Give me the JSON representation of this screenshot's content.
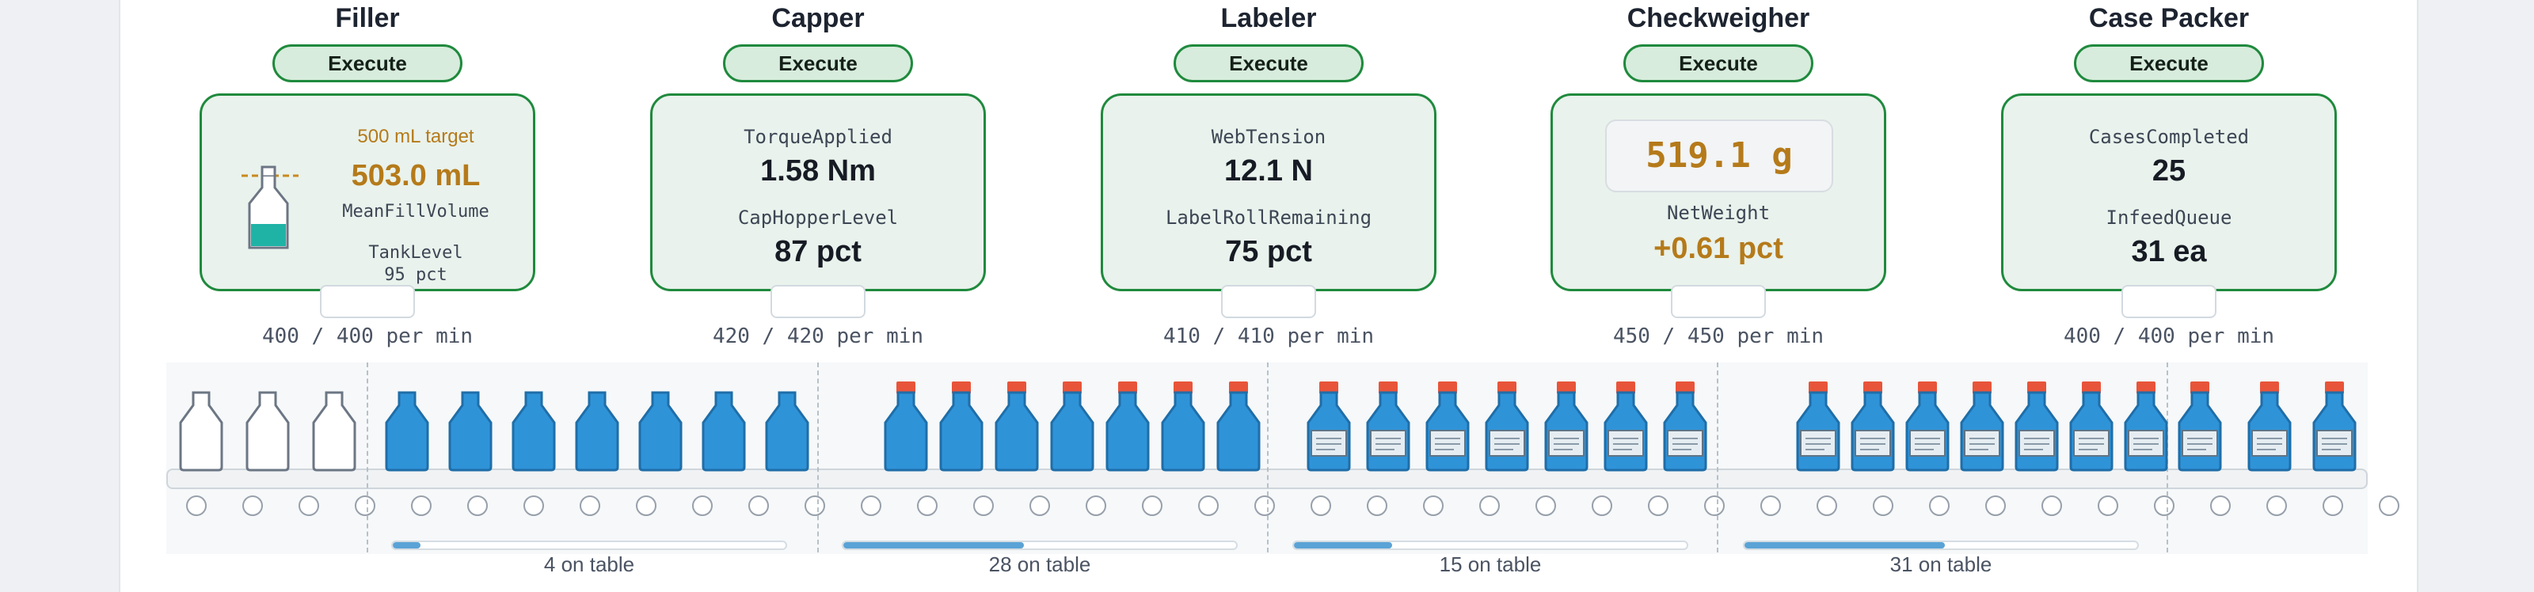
{
  "stations": [
    {
      "name": "Filler",
      "execute_label": "Execute",
      "rate": "400 / 400 per min",
      "target": "500 mL target",
      "fill_value": "503.0 mL",
      "fill_label": "MeanFillVolume",
      "tank_label": "TankLevel",
      "tank_value": "95 pct"
    },
    {
      "name": "Capper",
      "execute_label": "Execute",
      "rate": "420 / 420 per min",
      "m1_label": "TorqueApplied",
      "m1_value": "1.58 Nm",
      "m2_label": "CapHopperLevel",
      "m2_value": "87 pct"
    },
    {
      "name": "Labeler",
      "execute_label": "Execute",
      "rate": "410 / 410 per min",
      "m1_label": "WebTension",
      "m1_value": "12.1 N",
      "m2_label": "LabelRollRemaining",
      "m2_value": "75 pct"
    },
    {
      "name": "Checkweigher",
      "execute_label": "Execute",
      "rate": "450 / 450 per min",
      "display_value": "519.1 g",
      "m_label": "NetWeight",
      "m_value": "+0.61 pct"
    },
    {
      "name": "Case Packer",
      "execute_label": "Execute",
      "rate": "400 / 400 per min",
      "m1_label": "CasesCompleted",
      "m1_value": "25",
      "m2_label": "InfeedQueue",
      "m2_value": "31 ea"
    }
  ],
  "buffers": [
    {
      "label": "4 on table",
      "fill_fraction": 0.07
    },
    {
      "label": "28 on table",
      "fill_fraction": 0.46
    },
    {
      "label": "15 on table",
      "fill_fraction": 0.25
    },
    {
      "label": "31 on table",
      "fill_fraction": 0.51
    }
  ],
  "colors": {
    "accent_green": "#1f8a3d",
    "bottle_blue": "#2f93d8",
    "cap_red": "#e8543a",
    "fill_teal": "#1fb3a6",
    "warn_orange": "#b57a1a"
  }
}
